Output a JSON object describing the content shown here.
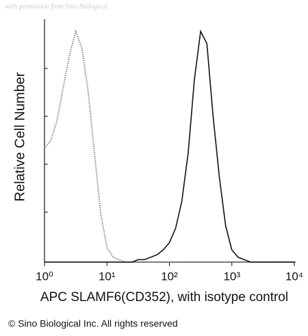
{
  "chart_data": {
    "type": "line",
    "watermark": "with permission from Sino Biological",
    "ylabel": "Relative Cell Number",
    "xlabel": "APC SLAMF6(CD352), with isotype control",
    "footer": "© Sino Biological Inc. All rights reserved",
    "xscale": "log",
    "xlim": [
      1,
      10000
    ],
    "ylim": [
      0,
      100
    ],
    "xticks": [
      {
        "value": 1,
        "label": "10⁰"
      },
      {
        "value": 10,
        "label": "10¹"
      },
      {
        "value": 100,
        "label": "10²"
      },
      {
        "value": 1000,
        "label": "10³"
      },
      {
        "value": 10000,
        "label": "10⁴"
      }
    ],
    "x": [
      1,
      1.26,
      1.58,
      2,
      2.51,
      3.16,
      3.98,
      5.01,
      6.31,
      7.94,
      10,
      12.6,
      15.8,
      20,
      25.1,
      31.6,
      39.8,
      50.1,
      63.1,
      79.4,
      100,
      126,
      158,
      200,
      251,
      316,
      398,
      501,
      631,
      794,
      1000,
      1260,
      1580,
      2000,
      2510,
      3160,
      3980,
      5010,
      6310,
      7940,
      10000
    ],
    "series": [
      {
        "color": "#8a8a8a",
        "dashed": true,
        "values": [
          47,
          50,
          58,
          72,
          85,
          95,
          88,
          70,
          45,
          20,
          6,
          2,
          1,
          0,
          0,
          0,
          0,
          0,
          0,
          0,
          0,
          0,
          0,
          0,
          0,
          0,
          0,
          0,
          0,
          0,
          0,
          0,
          0,
          0,
          0,
          0,
          0,
          0,
          0,
          0,
          0
        ]
      },
      {
        "color": "#111111",
        "dashed": false,
        "values": [
          0,
          0,
          0,
          0,
          0,
          0,
          0,
          0,
          0,
          0,
          0,
          0,
          0,
          0,
          0,
          1,
          1,
          2,
          3,
          5,
          8,
          14,
          25,
          45,
          75,
          95,
          90,
          60,
          35,
          15,
          5,
          2,
          1,
          0,
          0,
          0,
          0,
          0,
          0,
          0,
          0
        ]
      }
    ]
  }
}
